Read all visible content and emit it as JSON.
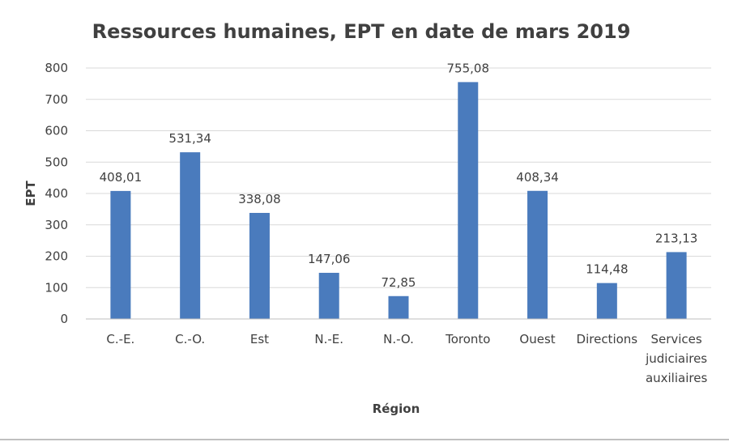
{
  "chart_data": {
    "type": "bar",
    "title": "Ressources humaines, EPT en date de mars 2019",
    "xlabel": "Région",
    "ylabel": "EPT",
    "ylim": [
      0,
      800
    ],
    "yticks": [
      0,
      100,
      200,
      300,
      400,
      500,
      600,
      700,
      800
    ],
    "grid": true,
    "legend": "none",
    "bar_color": "#4a7bbd",
    "categories": [
      "C.-E.",
      "C.-O.",
      "Est",
      "N.-E.",
      "N.-O.",
      "Toronto",
      "Ouest",
      "Directions",
      "Services judiciaires auxiliaires"
    ],
    "category_lines": [
      [
        "C.-E."
      ],
      [
        "C.-O."
      ],
      [
        "Est"
      ],
      [
        "N.-E."
      ],
      [
        "N.-O."
      ],
      [
        "Toronto"
      ],
      [
        "Ouest"
      ],
      [
        "Directions"
      ],
      [
        "Services",
        "judiciaires",
        "auxiliaires"
      ]
    ],
    "values": [
      408.01,
      531.34,
      338.08,
      147.06,
      72.85,
      755.08,
      408.34,
      114.48,
      213.13
    ],
    "data_labels": [
      "408,01",
      "531,34",
      "338,08",
      "147,06",
      "72,85",
      "755,08",
      "408,34",
      "114,48",
      "213,13"
    ]
  }
}
